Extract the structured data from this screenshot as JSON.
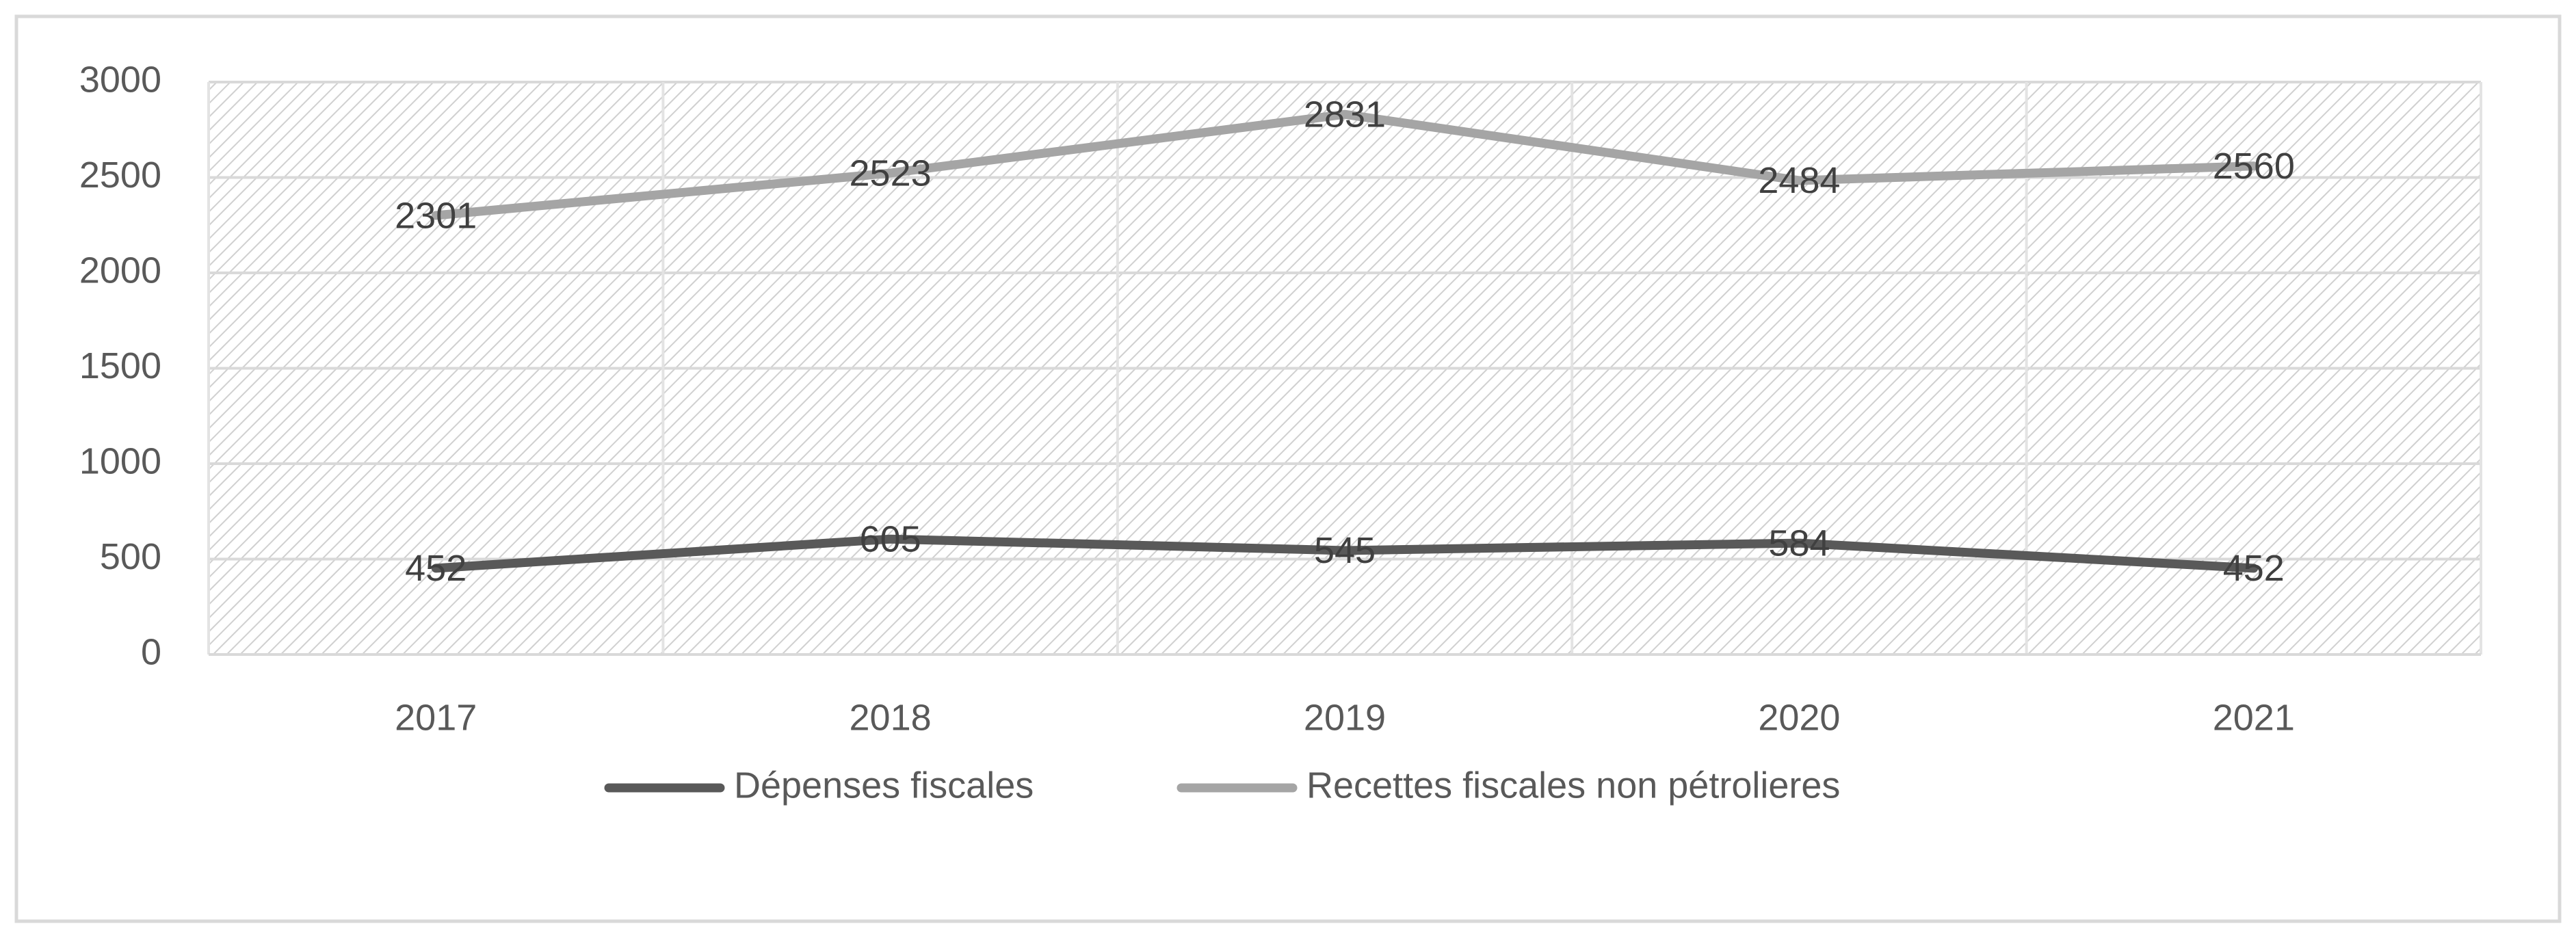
{
  "chart_data": {
    "type": "line",
    "categories": [
      "2017",
      "2018",
      "2019",
      "2020",
      "2021"
    ],
    "series": [
      {
        "name": "Dépenses fiscales",
        "color": "#595959",
        "values": [
          452,
          605,
          545,
          584,
          452
        ]
      },
      {
        "name": "Recettes fiscales non pétrolieres",
        "color": "#a5a5a5",
        "values": [
          2301,
          2523,
          2831,
          2484,
          2560
        ]
      }
    ],
    "ylim": [
      0,
      3000
    ],
    "yticks": [
      0,
      500,
      1000,
      1500,
      2000,
      2500,
      3000
    ],
    "grid": true,
    "legend": "bottom"
  }
}
